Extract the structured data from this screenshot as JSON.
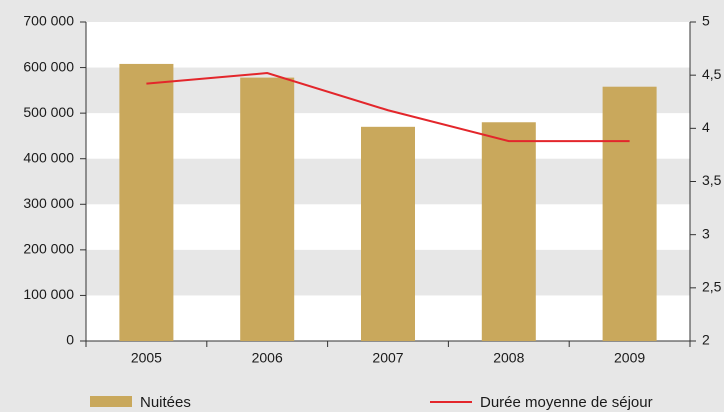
{
  "chart_data": {
    "type": "bar_line",
    "categories": [
      "2005",
      "2006",
      "2007",
      "2008",
      "2009"
    ],
    "series": [
      {
        "name": "Nuitées",
        "type": "bar",
        "color": "#c9a85c",
        "values": [
          608000,
          578000,
          470000,
          480000,
          558000
        ]
      },
      {
        "name": "Durée moyenne de séjour",
        "type": "line",
        "axis": "y2",
        "color": "#e3262b",
        "values": [
          4.42,
          4.52,
          4.17,
          3.88,
          3.88
        ]
      }
    ],
    "ylim": [
      0,
      700000
    ],
    "yticks": [
      0,
      {
        "value": 100000,
        "label": "100 000"
      },
      {
        "value": 200000,
        "label": "200 000"
      },
      {
        "value": 300000,
        "label": "300 000"
      },
      {
        "value": 400000,
        "label": "400 000"
      },
      {
        "value": 500000,
        "label": "500 000"
      },
      {
        "value": 600000,
        "label": "600 000"
      },
      {
        "value": 700000,
        "label": "700 000"
      }
    ],
    "y2lim": [
      2,
      5
    ],
    "y2ticks": [
      2,
      {
        "value": 2.5,
        "label": "2,5"
      },
      3,
      {
        "value": 3.5,
        "label": "3,5"
      },
      4,
      {
        "value": 4.5,
        "label": "4,5"
      },
      5
    ],
    "grid": "bands"
  }
}
